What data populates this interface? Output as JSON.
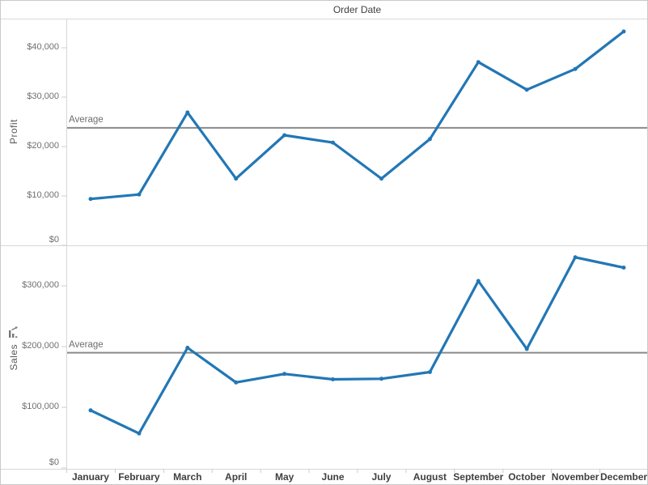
{
  "title": "Order Date",
  "colors": {
    "series_line": "#2277b5",
    "average_line": "#8a8a8a",
    "border": "#d8d8d8",
    "tick": "#cccccc",
    "axis_text": "#6f6f6f",
    "header_text": "#3f3f3f"
  },
  "icons": {
    "sales_axis_sort": "sort-axis-icon"
  },
  "chart_data": [
    {
      "type": "line",
      "ylabel": "Profit",
      "categories": [
        "January",
        "February",
        "March",
        "April",
        "May",
        "June",
        "July",
        "August",
        "September",
        "October",
        "November",
        "December"
      ],
      "values": [
        9400,
        10300,
        26900,
        13500,
        22300,
        20800,
        13500,
        21500,
        37100,
        31500,
        35700,
        43300
      ],
      "ylim": [
        0,
        45900
      ],
      "grid": false,
      "yticks": [
        {
          "value": 0,
          "label": "$0"
        },
        {
          "value": 10000,
          "label": "$10,000"
        },
        {
          "value": 20000,
          "label": "$20,000"
        },
        {
          "value": 30000,
          "label": "$30,000"
        },
        {
          "value": 40000,
          "label": "$40,000"
        }
      ],
      "average": {
        "label": "Average",
        "value": 23800
      }
    },
    {
      "type": "line",
      "ylabel": "Sales",
      "categories": [
        "January",
        "February",
        "March",
        "April",
        "May",
        "June",
        "July",
        "August",
        "September",
        "October",
        "November",
        "December"
      ],
      "values": [
        95000,
        57000,
        198000,
        141000,
        155000,
        146000,
        147000,
        158000,
        308000,
        196000,
        347000,
        330000
      ],
      "ylim": [
        0,
        366700
      ],
      "grid": false,
      "yticks": [
        {
          "value": 0,
          "label": "$0"
        },
        {
          "value": 100000,
          "label": "$100,000"
        },
        {
          "value": 200000,
          "label": "$200,000"
        },
        {
          "value": 300000,
          "label": "$300,000"
        }
      ],
      "average": {
        "label": "Average",
        "value": 189800
      }
    }
  ]
}
